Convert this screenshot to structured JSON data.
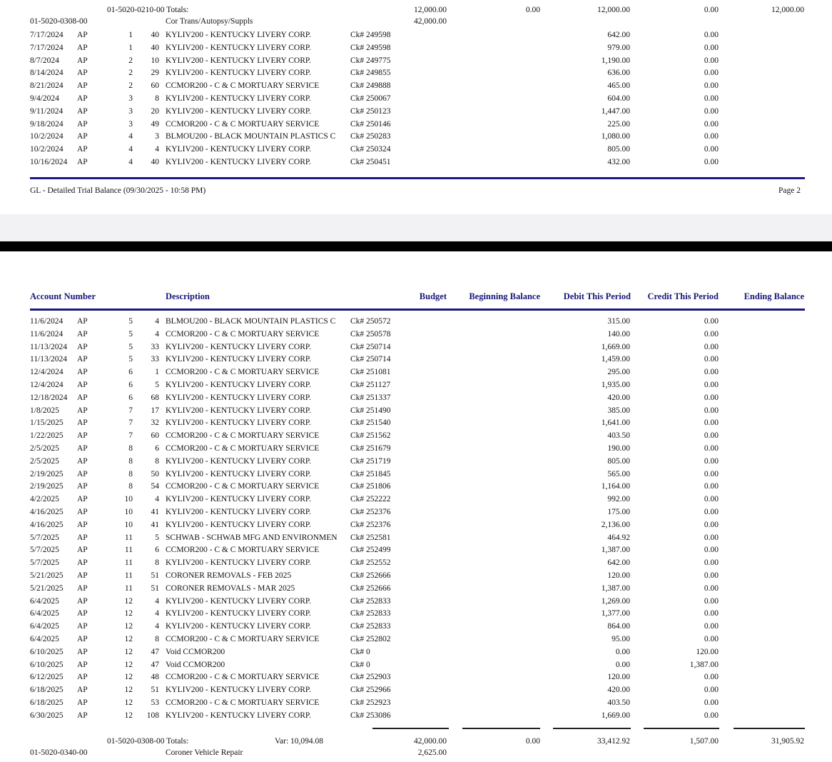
{
  "page1": {
    "totals_account": "01-5020-0210-00 Totals:",
    "totals_budget": "12,000.00",
    "totals_beginning": "0.00",
    "totals_debit": "12,000.00",
    "totals_credit": "0.00",
    "totals_ending": "12,000.00",
    "next_account": "01-5020-0308-00",
    "next_description": "Cor Trans/Autopsy/Suppls",
    "next_budget": "42,000.00",
    "rows": [
      {
        "date": "7/17/2024",
        "src": "AP",
        "per": "1",
        "seq": "40",
        "desc": "KYLIV200 -  KENTUCKY LIVERY CORP.",
        "ref": "Ck# 249598",
        "debit": "642.00",
        "credit": "0.00"
      },
      {
        "date": "7/17/2024",
        "src": "AP",
        "per": "1",
        "seq": "40",
        "desc": "KYLIV200 -  KENTUCKY LIVERY CORP.",
        "ref": "Ck# 249598",
        "debit": "979.00",
        "credit": "0.00"
      },
      {
        "date": "8/7/2024",
        "src": "AP",
        "per": "2",
        "seq": "10",
        "desc": "KYLIV200 -  KENTUCKY LIVERY CORP.",
        "ref": "Ck# 249775",
        "debit": "1,190.00",
        "credit": "0.00"
      },
      {
        "date": "8/14/2024",
        "src": "AP",
        "per": "2",
        "seq": "29",
        "desc": "KYLIV200 -  KENTUCKY LIVERY CORP.",
        "ref": "Ck# 249855",
        "debit": "636.00",
        "credit": "0.00"
      },
      {
        "date": "8/21/2024",
        "src": "AP",
        "per": "2",
        "seq": "60",
        "desc": "CCMOR200 -  C & C MORTUARY SERVICE",
        "ref": "Ck# 249888",
        "debit": "465.00",
        "credit": "0.00"
      },
      {
        "date": "9/4/2024",
        "src": "AP",
        "per": "3",
        "seq": "8",
        "desc": "KYLIV200 -  KENTUCKY LIVERY CORP.",
        "ref": "Ck# 250067",
        "debit": "604.00",
        "credit": "0.00"
      },
      {
        "date": "9/11/2024",
        "src": "AP",
        "per": "3",
        "seq": "20",
        "desc": "KYLIV200 -  KENTUCKY LIVERY CORP.",
        "ref": "Ck# 250123",
        "debit": "1,447.00",
        "credit": "0.00"
      },
      {
        "date": "9/18/2024",
        "src": "AP",
        "per": "3",
        "seq": "49",
        "desc": "CCMOR200 -  C & C MORTUARY SERVICE",
        "ref": "Ck# 250146",
        "debit": "225.00",
        "credit": "0.00"
      },
      {
        "date": "10/2/2024",
        "src": "AP",
        "per": "4",
        "seq": "3",
        "desc": "BLMOU200 -  BLACK MOUNTAIN PLASTICS C",
        "ref": "Ck# 250283",
        "debit": "1,080.00",
        "credit": "0.00"
      },
      {
        "date": "10/2/2024",
        "src": "AP",
        "per": "4",
        "seq": "4",
        "desc": "KYLIV200 -  KENTUCKY LIVERY CORP.",
        "ref": "Ck# 250324",
        "debit": "805.00",
        "credit": "0.00"
      },
      {
        "date": "10/16/2024",
        "src": "AP",
        "per": "4",
        "seq": "40",
        "desc": "KYLIV200 -  KENTUCKY LIVERY CORP.",
        "ref": "Ck# 250451",
        "debit": "432.00",
        "credit": "0.00"
      }
    ],
    "footer_title": "GL - Detailed Trial Balance (09/30/2025 - 10:58 PM)",
    "footer_page": "Page 2"
  },
  "page2": {
    "headers": {
      "account": "Account Number",
      "description": "Description",
      "budget": "Budget",
      "beginning": "Beginning Balance",
      "debit": "Debit This Period",
      "credit": "Credit This Period",
      "ending": "Ending Balance"
    },
    "rows": [
      {
        "date": "11/6/2024",
        "src": "AP",
        "per": "5",
        "seq": "4",
        "desc": "BLMOU200 -  BLACK MOUNTAIN PLASTICS C",
        "ref": "Ck# 250572",
        "debit": "315.00",
        "credit": "0.00"
      },
      {
        "date": "11/6/2024",
        "src": "AP",
        "per": "5",
        "seq": "4",
        "desc": "CCMOR200 -  C & C MORTUARY SERVICE",
        "ref": "Ck# 250578",
        "debit": "140.00",
        "credit": "0.00"
      },
      {
        "date": "11/13/2024",
        "src": "AP",
        "per": "5",
        "seq": "33",
        "desc": "KYLIV200 -  KENTUCKY LIVERY CORP.",
        "ref": "Ck# 250714",
        "debit": "1,669.00",
        "credit": "0.00"
      },
      {
        "date": "11/13/2024",
        "src": "AP",
        "per": "5",
        "seq": "33",
        "desc": "KYLIV200 -  KENTUCKY LIVERY CORP.",
        "ref": "Ck# 250714",
        "debit": "1,459.00",
        "credit": "0.00"
      },
      {
        "date": "12/4/2024",
        "src": "AP",
        "per": "6",
        "seq": "1",
        "desc": "CCMOR200 -  C & C MORTUARY SERVICE",
        "ref": "Ck# 251081",
        "debit": "295.00",
        "credit": "0.00"
      },
      {
        "date": "12/4/2024",
        "src": "AP",
        "per": "6",
        "seq": "5",
        "desc": "KYLIV200 -  KENTUCKY LIVERY CORP.",
        "ref": "Ck# 251127",
        "debit": "1,935.00",
        "credit": "0.00"
      },
      {
        "date": "12/18/2024",
        "src": "AP",
        "per": "6",
        "seq": "68",
        "desc": "KYLIV200 -  KENTUCKY LIVERY CORP.",
        "ref": "Ck# 251337",
        "debit": "420.00",
        "credit": "0.00"
      },
      {
        "date": "1/8/2025",
        "src": "AP",
        "per": "7",
        "seq": "17",
        "desc": "KYLIV200 -  KENTUCKY LIVERY CORP.",
        "ref": "Ck# 251490",
        "debit": "385.00",
        "credit": "0.00"
      },
      {
        "date": "1/15/2025",
        "src": "AP",
        "per": "7",
        "seq": "32",
        "desc": "KYLIV200 -  KENTUCKY LIVERY CORP.",
        "ref": "Ck# 251540",
        "debit": "1,641.00",
        "credit": "0.00"
      },
      {
        "date": "1/22/2025",
        "src": "AP",
        "per": "7",
        "seq": "60",
        "desc": "CCMOR200 -  C & C MORTUARY SERVICE",
        "ref": "Ck# 251562",
        "debit": "403.50",
        "credit": "0.00"
      },
      {
        "date": "2/5/2025",
        "src": "AP",
        "per": "8",
        "seq": "6",
        "desc": "CCMOR200 -  C & C MORTUARY SERVICE",
        "ref": "Ck# 251679",
        "debit": "190.00",
        "credit": "0.00"
      },
      {
        "date": "2/5/2025",
        "src": "AP",
        "per": "8",
        "seq": "8",
        "desc": "KYLIV200 -  KENTUCKY LIVERY CORP.",
        "ref": "Ck# 251719",
        "debit": "805.00",
        "credit": "0.00"
      },
      {
        "date": "2/19/2025",
        "src": "AP",
        "per": "8",
        "seq": "50",
        "desc": "KYLIV200 -  KENTUCKY LIVERY CORP.",
        "ref": "Ck# 251845",
        "debit": "565.00",
        "credit": "0.00"
      },
      {
        "date": "2/19/2025",
        "src": "AP",
        "per": "8",
        "seq": "54",
        "desc": "CCMOR200 -  C & C MORTUARY SERVICE",
        "ref": "Ck# 251806",
        "debit": "1,164.00",
        "credit": "0.00"
      },
      {
        "date": "4/2/2025",
        "src": "AP",
        "per": "10",
        "seq": "4",
        "desc": "KYLIV200 -  KENTUCKY LIVERY CORP.",
        "ref": "Ck# 252222",
        "debit": "992.00",
        "credit": "0.00"
      },
      {
        "date": "4/16/2025",
        "src": "AP",
        "per": "10",
        "seq": "41",
        "desc": "KYLIV200 -  KENTUCKY LIVERY CORP.",
        "ref": "Ck# 252376",
        "debit": "175.00",
        "credit": "0.00"
      },
      {
        "date": "4/16/2025",
        "src": "AP",
        "per": "10",
        "seq": "41",
        "desc": "KYLIV200 -  KENTUCKY LIVERY CORP.",
        "ref": "Ck# 252376",
        "debit": "2,136.00",
        "credit": "0.00"
      },
      {
        "date": "5/7/2025",
        "src": "AP",
        "per": "11",
        "seq": "5",
        "desc": "SCHWAB -  SCHWAB MFG AND ENVIRONMEN",
        "ref": "Ck# 252581",
        "debit": "464.92",
        "credit": "0.00"
      },
      {
        "date": "5/7/2025",
        "src": "AP",
        "per": "11",
        "seq": "6",
        "desc": "CCMOR200 -  C & C MORTUARY SERVICE",
        "ref": "Ck# 252499",
        "debit": "1,387.00",
        "credit": "0.00"
      },
      {
        "date": "5/7/2025",
        "src": "AP",
        "per": "11",
        "seq": "8",
        "desc": "KYLIV200 -  KENTUCKY LIVERY CORP.",
        "ref": "Ck# 252552",
        "debit": "642.00",
        "credit": "0.00"
      },
      {
        "date": "5/21/2025",
        "src": "AP",
        "per": "11",
        "seq": "51",
        "desc": "CORONER REMOVALS - FEB 2025",
        "ref": "Ck# 252666",
        "debit": "120.00",
        "credit": "0.00"
      },
      {
        "date": "5/21/2025",
        "src": "AP",
        "per": "11",
        "seq": "51",
        "desc": "CORONER REMOVALS - MAR 2025",
        "ref": "Ck# 252666",
        "debit": "1,387.00",
        "credit": "0.00"
      },
      {
        "date": "6/4/2025",
        "src": "AP",
        "per": "12",
        "seq": "4",
        "desc": "KYLIV200 -  KENTUCKY LIVERY CORP.",
        "ref": "Ck# 252833",
        "debit": "1,269.00",
        "credit": "0.00"
      },
      {
        "date": "6/4/2025",
        "src": "AP",
        "per": "12",
        "seq": "4",
        "desc": "KYLIV200 -  KENTUCKY LIVERY CORP.",
        "ref": "Ck# 252833",
        "debit": "1,377.00",
        "credit": "0.00"
      },
      {
        "date": "6/4/2025",
        "src": "AP",
        "per": "12",
        "seq": "4",
        "desc": "KYLIV200 -  KENTUCKY LIVERY CORP.",
        "ref": "Ck# 252833",
        "debit": "864.00",
        "credit": "0.00"
      },
      {
        "date": "6/4/2025",
        "src": "AP",
        "per": "12",
        "seq": "8",
        "desc": "CCMOR200 -  C & C MORTUARY SERVICE",
        "ref": "Ck# 252802",
        "debit": "95.00",
        "credit": "0.00"
      },
      {
        "date": "6/10/2025",
        "src": "AP",
        "per": "12",
        "seq": "47",
        "desc": "Void CCMOR200",
        "ref": "Ck# 0",
        "debit": "0.00",
        "credit": "120.00"
      },
      {
        "date": "6/10/2025",
        "src": "AP",
        "per": "12",
        "seq": "47",
        "desc": "Void CCMOR200",
        "ref": "Ck# 0",
        "debit": "0.00",
        "credit": "1,387.00"
      },
      {
        "date": "6/12/2025",
        "src": "AP",
        "per": "12",
        "seq": "48",
        "desc": "CCMOR200 -  C & C MORTUARY SERVICE",
        "ref": "Ck# 252903",
        "debit": "120.00",
        "credit": "0.00"
      },
      {
        "date": "6/18/2025",
        "src": "AP",
        "per": "12",
        "seq": "51",
        "desc": "KYLIV200 -  KENTUCKY LIVERY CORP.",
        "ref": "Ck# 252966",
        "debit": "420.00",
        "credit": "0.00"
      },
      {
        "date": "6/18/2025",
        "src": "AP",
        "per": "12",
        "seq": "53",
        "desc": "CCMOR200 -  C & C MORTUARY SERVICE",
        "ref": "Ck# 252923",
        "debit": "403.50",
        "credit": "0.00"
      },
      {
        "date": "6/30/2025",
        "src": "AP",
        "per": "12",
        "seq": "108",
        "desc": "KYLIV200 -  KENTUCKY LIVERY CORP.",
        "ref": "Ck# 253086",
        "debit": "1,669.00",
        "credit": "0.00"
      }
    ],
    "totals_account": "01-5020-0308-00 Totals:",
    "totals_var": "Var: 10,094.08",
    "totals_budget": "42,000.00",
    "totals_beginning": "0.00",
    "totals_debit": "33,412.92",
    "totals_credit": "1,507.00",
    "totals_ending": "31,905.92",
    "next_account": "01-5020-0340-00",
    "next_description": "Coroner Vehicle Repair",
    "next_budget": "2,625.00"
  }
}
